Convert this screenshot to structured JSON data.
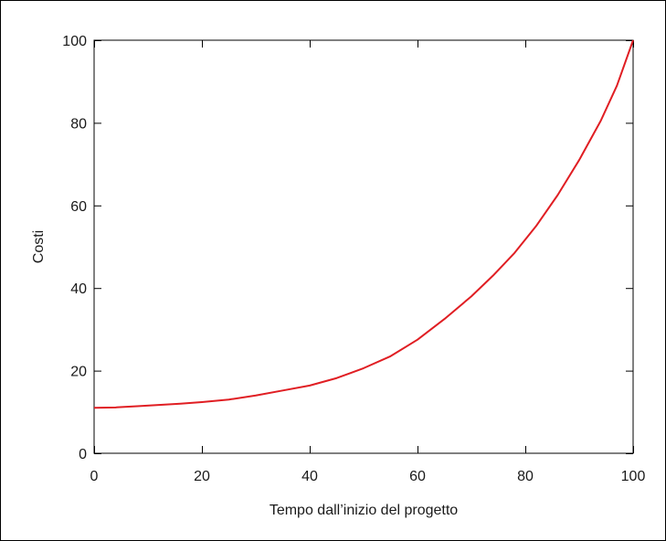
{
  "chart_data": {
    "type": "line",
    "title": "",
    "xlabel": "Tempo dall’inizio del progetto",
    "ylabel": "Costi",
    "xlim": [
      0,
      100
    ],
    "ylim": [
      0,
      100
    ],
    "xticks": [
      0,
      20,
      40,
      60,
      80,
      100
    ],
    "yticks": [
      0,
      20,
      40,
      60,
      80,
      100
    ],
    "grid": false,
    "series": [
      {
        "color": "#e01e23",
        "x": [
          0,
          4,
          8,
          12,
          16,
          20,
          25,
          30,
          35,
          40,
          45,
          50,
          55,
          60,
          65,
          70,
          74,
          78,
          82,
          86,
          90,
          94,
          97,
          100
        ],
        "y": [
          11,
          11.1,
          11.4,
          11.7,
          12,
          12.4,
          13,
          14,
          15.2,
          16.4,
          18.2,
          20.6,
          23.5,
          27.5,
          32.5,
          38,
          43,
          48.5,
          55,
          62.5,
          71,
          80.5,
          89,
          100
        ]
      }
    ]
  }
}
